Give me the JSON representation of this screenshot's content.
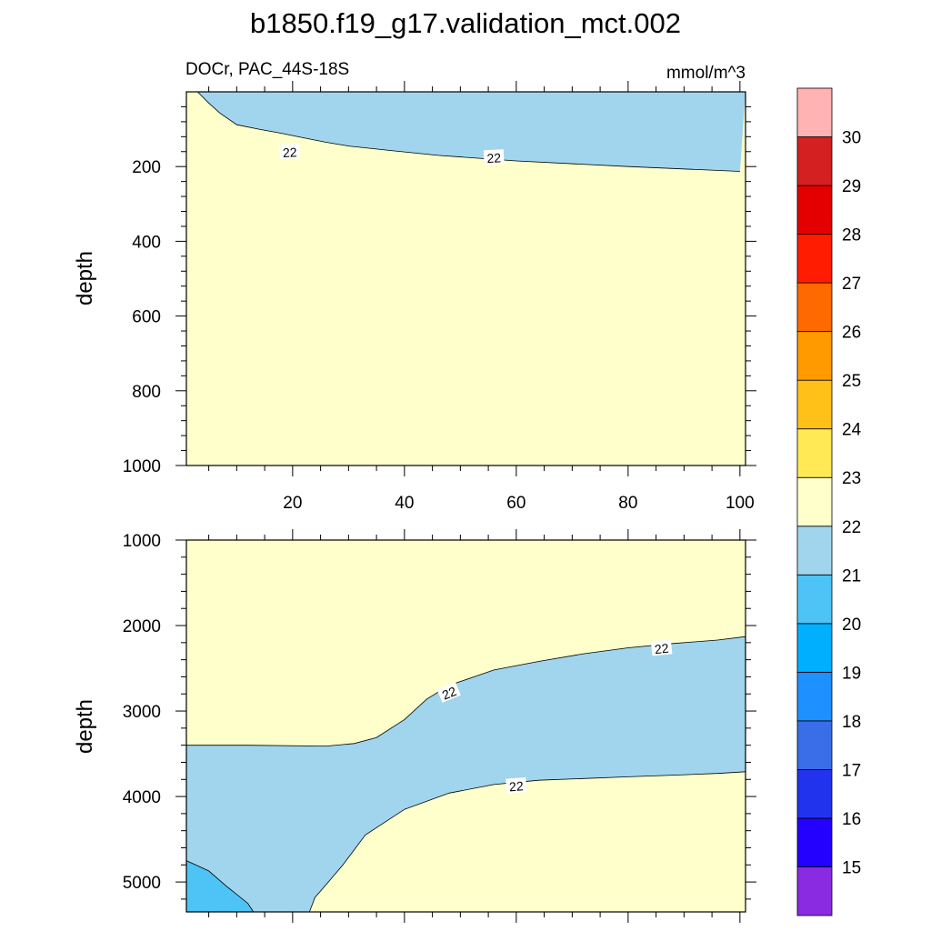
{
  "title": "b1850.f19_g17.validation_mct.002",
  "subtitle_left": "DOCr, PAC_44S-18S",
  "subtitle_right": "mmol/m^3",
  "chart_data": [
    {
      "type": "contour",
      "panel": "upper",
      "ylabel": "depth",
      "xlim": [
        1,
        101
      ],
      "ylim": [
        1000,
        0
      ],
      "x_ticks": [
        "20",
        "40",
        "60",
        "80",
        "100"
      ],
      "y_ticks": [
        "200",
        "400",
        "600",
        "800",
        "1000"
      ],
      "contour_labels": [
        "22",
        "22"
      ],
      "isoline_22": [
        [
          3,
          0
        ],
        [
          5,
          30
        ],
        [
          7,
          57
        ],
        [
          10,
          88
        ],
        [
          14,
          100
        ],
        [
          18,
          111
        ],
        [
          22,
          123
        ],
        [
          26,
          135
        ],
        [
          30,
          145
        ],
        [
          38,
          158
        ],
        [
          46,
          170
        ],
        [
          60,
          185
        ],
        [
          80,
          200
        ],
        [
          100,
          213
        ]
      ],
      "regions": [
        {
          "range": "21-22",
          "description": "above isoline"
        },
        {
          "range": "22-23",
          "description": "below isoline"
        }
      ]
    },
    {
      "type": "contour",
      "panel": "lower",
      "ylabel": "depth",
      "xlim": [
        1,
        101
      ],
      "ylim": [
        5350,
        1000
      ],
      "y_ticks": [
        "1000",
        "2000",
        "3000",
        "4000",
        "5000"
      ],
      "contour_labels": [
        "22",
        "22",
        "22"
      ],
      "upper_isoline_22": [
        [
          1,
          3400
        ],
        [
          12,
          3400
        ],
        [
          26,
          3410
        ],
        [
          31,
          3380
        ],
        [
          35,
          3310
        ],
        [
          40,
          3100
        ],
        [
          44,
          2860
        ],
        [
          48,
          2700
        ],
        [
          56,
          2520
        ],
        [
          64,
          2420
        ],
        [
          72,
          2330
        ],
        [
          80,
          2260
        ],
        [
          88,
          2210
        ],
        [
          96,
          2170
        ],
        [
          101,
          2130
        ]
      ],
      "lower_isoline_22": [
        [
          23,
          5350
        ],
        [
          24,
          5180
        ],
        [
          26,
          5030
        ],
        [
          29,
          4800
        ],
        [
          33,
          4450
        ],
        [
          40,
          4150
        ],
        [
          48,
          3960
        ],
        [
          56,
          3860
        ],
        [
          64,
          3810
        ],
        [
          72,
          3790
        ],
        [
          80,
          3770
        ],
        [
          88,
          3750
        ],
        [
          96,
          3730
        ],
        [
          101,
          3710
        ]
      ],
      "blob_21_boundary": [
        [
          1,
          4750
        ],
        [
          5,
          4870
        ],
        [
          8,
          5040
        ],
        [
          12,
          5250
        ],
        [
          13,
          5350
        ]
      ],
      "regions": [
        {
          "range": "22-23",
          "description": "upper and lower-right zones"
        },
        {
          "range": "21-22",
          "description": "between isolines"
        },
        {
          "range": "20-21",
          "description": "bottom-left corner"
        }
      ]
    },
    {
      "type": "colorbar",
      "levels": [
        "15",
        "16",
        "17",
        "18",
        "19",
        "20",
        "21",
        "22",
        "23",
        "24",
        "25",
        "26",
        "27",
        "28",
        "29",
        "30"
      ],
      "colors": [
        "#8a2be2",
        "#2400ff",
        "#2233ee",
        "#3a6ee8",
        "#1e90ff",
        "#00b0ff",
        "#4dc4f5",
        "#a0d5ed",
        "#ffffcc",
        "#ffea55",
        "#ffc118",
        "#ff9a00",
        "#ff6a00",
        "#ff1c00",
        "#e40000",
        "#d42020",
        "#ffb3b3"
      ]
    }
  ]
}
